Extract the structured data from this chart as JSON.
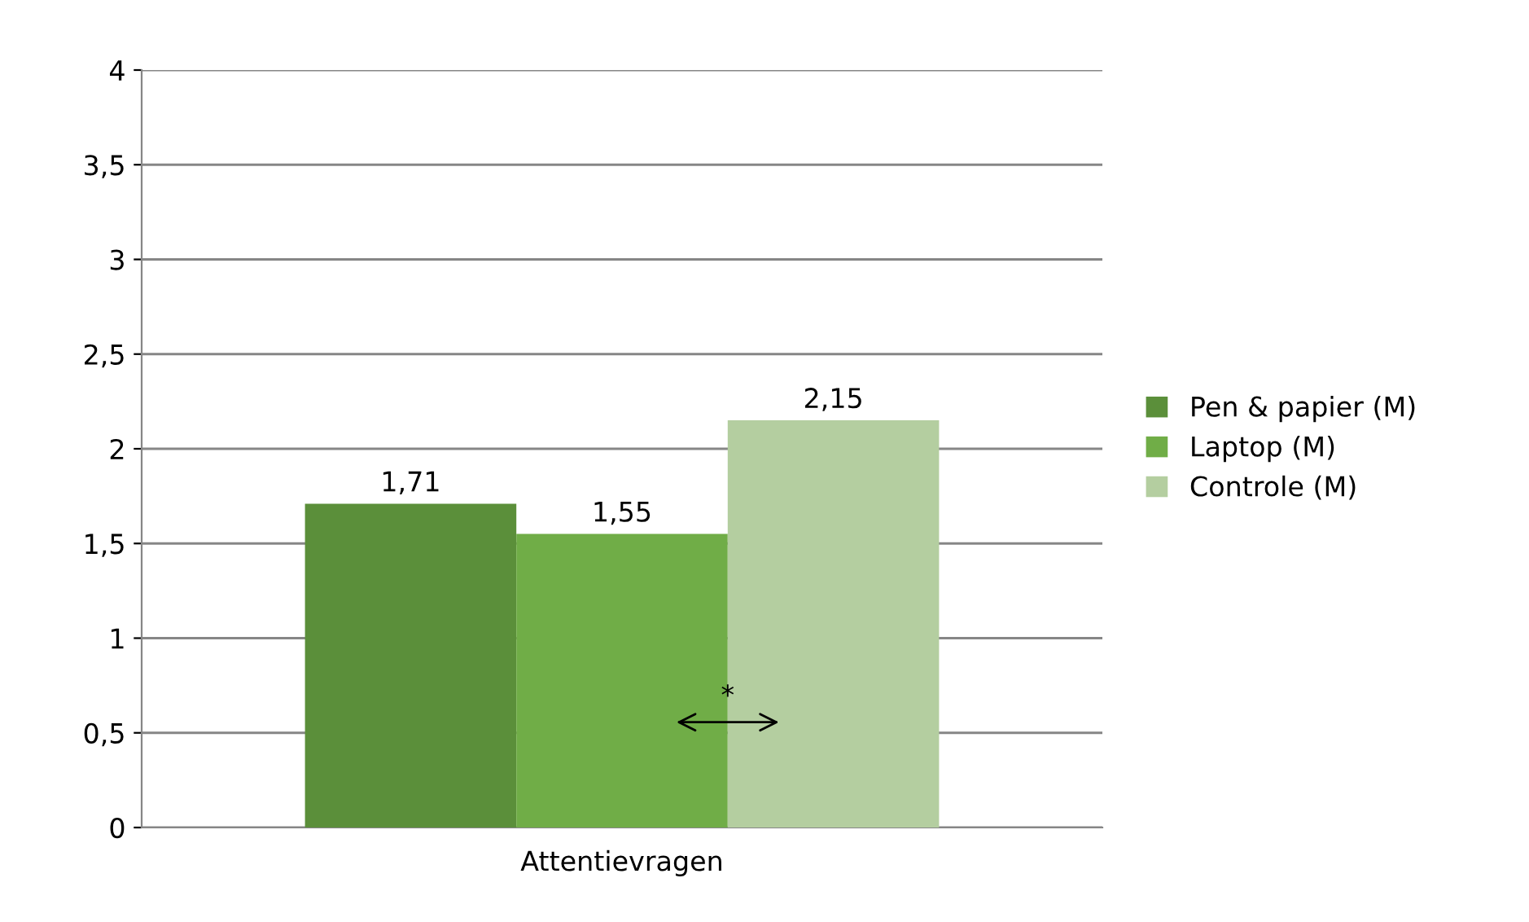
{
  "chart_data": {
    "type": "bar",
    "categories": [
      "Attentievragen"
    ],
    "series": [
      {
        "name": "Pen & papier (M)",
        "color": "#5b8f3a",
        "values": [
          1.71
        ],
        "value_labels": [
          "1,71"
        ]
      },
      {
        "name": "Laptop (M)",
        "color": "#70ad47",
        "values": [
          1.55
        ],
        "value_labels": [
          "1,55"
        ]
      },
      {
        "name": "Controle (M)",
        "color": "#b4cea0",
        "values": [
          2.15
        ],
        "value_labels": [
          "2,15"
        ]
      }
    ],
    "ylim": [
      0,
      4
    ],
    "yticks": [
      0,
      {
        "value": 0.5,
        "label": "0,5"
      },
      1,
      {
        "value": 1.5,
        "label": "1,5"
      },
      2,
      {
        "value": 2.5,
        "label": "2,5"
      },
      3,
      {
        "value": 3.5,
        "label": "3,5"
      },
      4
    ],
    "grid": "y",
    "legend": "right",
    "annotations": [
      "*"
    ]
  }
}
